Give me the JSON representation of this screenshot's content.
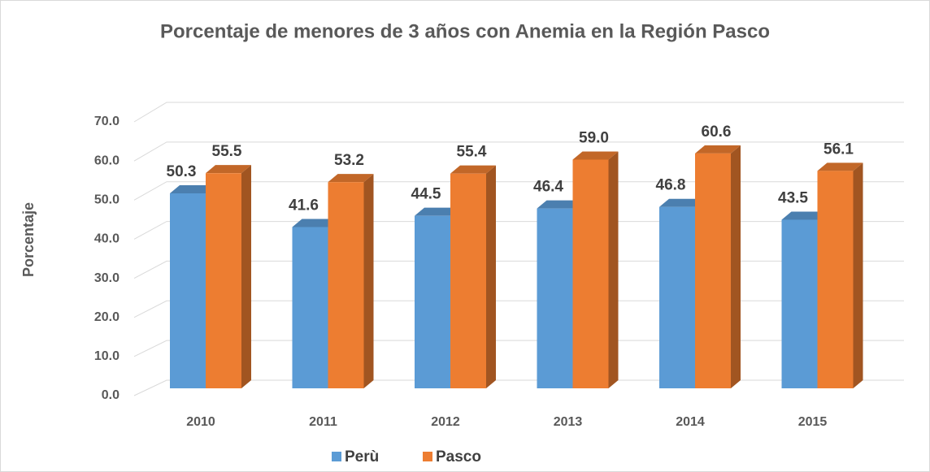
{
  "chart_data": {
    "type": "bar3d",
    "title": "Porcentaje de menores de 3 años con Anemia en la Región Pasco",
    "y_label": "Porcentaje",
    "categories": [
      "2010",
      "2011",
      "2012",
      "2013",
      "2014",
      "2015"
    ],
    "series": [
      {
        "name": "Perù",
        "color": "#5b9bd5",
        "values": [
          50.3,
          41.6,
          44.5,
          46.4,
          46.8,
          43.5
        ],
        "value_labels": [
          "50.3",
          "41.6",
          "44.5",
          "46.4",
          "46.8",
          "43.5"
        ]
      },
      {
        "name": "Pasco",
        "color": "#ed7d31",
        "values": [
          55.5,
          53.2,
          55.4,
          59.0,
          60.6,
          56.1
        ],
        "value_labels": [
          "55.5",
          "53.2",
          "55.4",
          "59.0",
          "60.6",
          "56.1"
        ]
      }
    ],
    "ylim": [
      0,
      70
    ],
    "yticks": [
      {
        "value": 0,
        "label": "0.0"
      },
      {
        "value": 10,
        "label": "10.0"
      },
      {
        "value": 20,
        "label": "20.0"
      },
      {
        "value": 30,
        "label": "30.0"
      },
      {
        "value": 40,
        "label": "40.0"
      },
      {
        "value": 50,
        "label": "50.0"
      },
      {
        "value": 60,
        "label": "60.0"
      },
      {
        "value": 70,
        "label": "70.0"
      }
    ],
    "grid": true,
    "legend": "bottom"
  }
}
